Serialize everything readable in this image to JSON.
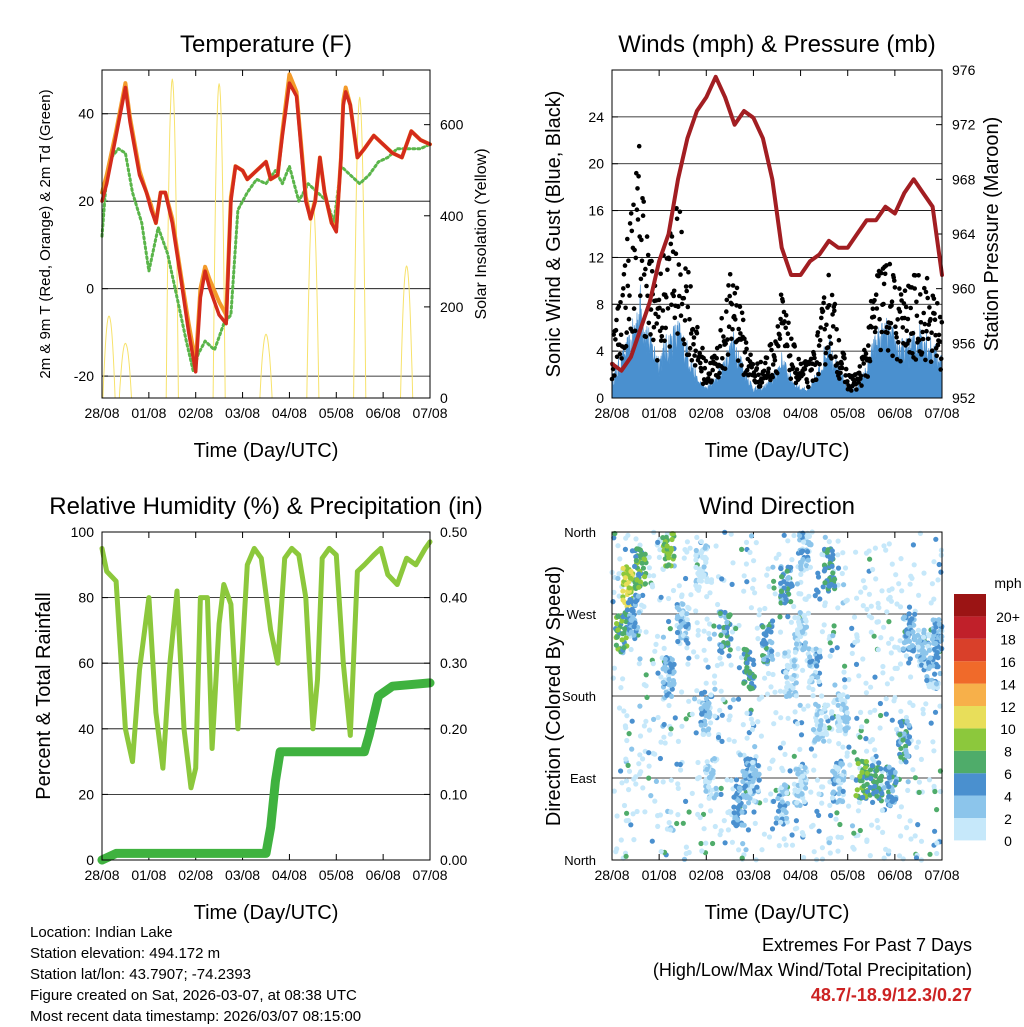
{
  "xticks": [
    "28/08",
    "01/08",
    "02/08",
    "03/08",
    "04/08",
    "05/08",
    "06/08",
    "07/08"
  ],
  "info": {
    "location": "Location: Indian Lake",
    "elevation": "Station elevation: 494.172 m",
    "latlon": "Station lat/lon: 43.7907; -74.2393",
    "created": "Figure created on Sat, 2026-03-07, at 08:38 UTC",
    "latest": "Most recent data timestamp: 2026/03/07 08:15:00"
  },
  "extremes": {
    "title": "Extremes For Past 7 Days",
    "subtitle": "(High/Low/Max Wind/Total Precipitation)",
    "values": "48.7/-18.9/12.3/0.27"
  },
  "chart_data": [
    {
      "id": "temp",
      "type": "line",
      "title": "Temperature (F)",
      "xlabel": "Time (Day/UTC)",
      "ylabel": "2m & 9m T (Red, Orange) & 2m Td (Green)",
      "ylabel_right": "Solar Insolation (Yellow)",
      "ylim": [
        -25,
        50
      ],
      "yticks": [
        "-20",
        "0",
        "20",
        "40"
      ],
      "ylim_right": [
        0,
        720
      ],
      "yticks_right": [
        "0",
        "200",
        "400",
        "600"
      ],
      "colors": {
        "t2m": "#d42b1c",
        "t9m": "#f39a2a",
        "td2m": "#5ab54a",
        "solar": "#f7e26b"
      },
      "series": [
        {
          "name": "2m T",
          "x": [
            0,
            0.1,
            0.3,
            0.5,
            0.6,
            0.8,
            0.95,
            1.05,
            1.15,
            1.25,
            1.35,
            1.5,
            1.7,
            1.85,
            2.0,
            2.1,
            2.2,
            2.3,
            2.5,
            2.65,
            2.75,
            2.85,
            3.0,
            3.1,
            3.3,
            3.5,
            3.6,
            3.75,
            3.85,
            4.0,
            4.15,
            4.35,
            4.45,
            4.55,
            4.65,
            4.75,
            4.9,
            5.0,
            5.1,
            5.15,
            5.2,
            5.3,
            5.45,
            5.6,
            5.8,
            6.0,
            6.2,
            6.4,
            6.6,
            6.8,
            7.0
          ],
          "y": [
            20,
            24,
            35,
            46,
            38,
            26,
            22,
            18,
            15,
            22,
            22,
            15,
            1,
            -10,
            -19,
            -2,
            4,
            0,
            -6,
            -8,
            20,
            28,
            27,
            25,
            27,
            29,
            25,
            26,
            35,
            47,
            44,
            20,
            16,
            20,
            30,
            22,
            15,
            13,
            30,
            42,
            45,
            42,
            30,
            32,
            35,
            33,
            31,
            30,
            36,
            34,
            33
          ]
        },
        {
          "name": "9m T",
          "x": [
            0,
            0.1,
            0.3,
            0.5,
            0.6,
            0.8,
            0.95,
            1.05,
            1.15,
            1.25,
            1.35,
            1.5,
            1.7,
            1.85,
            2.0,
            2.1,
            2.2,
            2.3,
            2.5,
            2.65,
            2.75,
            2.85,
            3.0,
            3.1,
            3.3,
            3.5,
            3.6,
            3.75,
            3.85,
            4.0,
            4.15,
            4.35,
            4.45,
            4.55,
            4.65,
            4.75,
            4.9,
            5.0,
            5.1,
            5.15,
            5.2,
            5.3,
            5.45,
            5.6,
            5.8,
            6.0,
            6.2,
            6.4,
            6.6,
            6.8,
            7.0
          ],
          "y": [
            22,
            26,
            36,
            47,
            39,
            27,
            22,
            19,
            15,
            22,
            22,
            16,
            2,
            -8,
            -17,
            0,
            5,
            2,
            -3,
            -6,
            21,
            28,
            27,
            25,
            27,
            29,
            25,
            26,
            36,
            49,
            45,
            21,
            16,
            20,
            30,
            22,
            15,
            14,
            30,
            43,
            46,
            42,
            30,
            32,
            35,
            33,
            31,
            30,
            36,
            34,
            33
          ]
        },
        {
          "name": "2m Td",
          "x": [
            0,
            0.1,
            0.2,
            0.35,
            0.5,
            0.65,
            0.85,
            1.0,
            1.2,
            1.4,
            1.6,
            1.8,
            1.95,
            2.05,
            2.2,
            2.4,
            2.6,
            2.75,
            2.9,
            3.1,
            3.3,
            3.5,
            3.7,
            3.85,
            4.0,
            4.2,
            4.4,
            4.6,
            4.8,
            4.95,
            5.1,
            5.3,
            5.5,
            5.7,
            5.9,
            6.1,
            6.3,
            6.5,
            6.8,
            7.0
          ],
          "y": [
            12,
            26,
            30,
            32,
            31,
            22,
            15,
            4,
            14,
            8,
            -2,
            -12,
            -19,
            -15,
            -12,
            -14,
            -8,
            -6,
            18,
            22,
            25,
            24,
            27,
            24,
            28,
            20,
            24,
            22,
            20,
            15,
            28,
            26,
            24,
            26,
            29,
            30,
            32,
            32,
            32,
            33
          ]
        },
        {
          "name": "Solar",
          "axis": "right",
          "peaks": [
            0.15,
            0.5,
            1.5,
            2.5,
            3.5,
            4.5,
            5.5,
            6.5
          ],
          "amplitude": [
            180,
            120,
            700,
            690,
            140,
            430,
            660,
            290
          ]
        }
      ]
    },
    {
      "id": "wind",
      "type": "scatter",
      "title": "Winds (mph) & Pressure (mb)",
      "xlabel": "Time (Day/UTC)",
      "ylabel": "Sonic Wind & Gust (Blue, Black)",
      "ylabel_right": "Station Pressure (Maroon)",
      "ylim": [
        0,
        28
      ],
      "yticks": [
        "0",
        "4",
        "8",
        "12",
        "16",
        "20",
        "24"
      ],
      "ylim_right": [
        952,
        976
      ],
      "yticks_right": [
        "952",
        "956",
        "960",
        "964",
        "968",
        "972",
        "976"
      ],
      "colors": {
        "wind": "#4a90cf",
        "gust": "#000000",
        "pressure": "#a21e22"
      },
      "series": [
        {
          "name": "Gust envelope",
          "x": [
            0,
            0.2,
            0.4,
            0.6,
            0.8,
            1.0,
            1.2,
            1.4,
            1.6,
            1.8,
            2.0,
            2.2,
            2.4,
            2.6,
            2.8,
            3.0,
            3.2,
            3.4,
            3.6,
            3.8,
            4.0,
            4.2,
            4.4,
            4.6,
            4.8,
            5.0,
            5.2,
            5.4,
            5.6,
            5.8,
            6.0,
            6.2,
            6.4,
            6.6,
            6.8,
            7.0
          ],
          "y": [
            5,
            10,
            16,
            22,
            12,
            10,
            14,
            16,
            12,
            6,
            3,
            4,
            8,
            12,
            6,
            3,
            3,
            5,
            9,
            5,
            3,
            3,
            6,
            11,
            6,
            2,
            2,
            5,
            11,
            12,
            10,
            9,
            10,
            11,
            9,
            7
          ]
        },
        {
          "name": "Wind envelope",
          "x": [
            0,
            0.2,
            0.4,
            0.6,
            0.8,
            1.0,
            1.2,
            1.4,
            1.6,
            1.8,
            2.0,
            2.2,
            2.4,
            2.6,
            2.8,
            3.0,
            3.2,
            3.4,
            3.6,
            3.8,
            4.0,
            4.2,
            4.4,
            4.6,
            4.8,
            5.0,
            5.2,
            5.4,
            5.6,
            5.8,
            6.0,
            6.2,
            6.4,
            6.6,
            6.8,
            7.0
          ],
          "y": [
            2,
            4,
            6,
            10,
            6,
            4,
            6,
            7,
            5,
            2,
            1,
            2,
            4,
            6,
            3,
            1,
            1,
            2,
            4,
            2,
            1,
            1,
            3,
            6,
            3,
            1,
            1,
            3,
            6,
            7,
            6,
            5,
            6,
            7,
            5,
            4
          ]
        },
        {
          "name": "Pressure",
          "axis": "right",
          "x": [
            0,
            0.2,
            0.4,
            0.6,
            0.8,
            1.0,
            1.2,
            1.4,
            1.6,
            1.8,
            2.0,
            2.2,
            2.4,
            2.6,
            2.8,
            3.0,
            3.2,
            3.4,
            3.6,
            3.8,
            4.0,
            4.2,
            4.4,
            4.6,
            4.8,
            5.0,
            5.2,
            5.4,
            5.6,
            5.8,
            6.0,
            6.2,
            6.4,
            6.6,
            6.8,
            7.0
          ],
          "y": [
            954.5,
            954,
            955,
            957,
            959,
            962,
            964,
            968,
            971,
            973,
            974,
            975.5,
            974,
            972,
            973,
            972.5,
            971,
            968,
            963,
            961,
            961,
            962,
            962.5,
            963.5,
            963,
            963,
            964,
            965,
            965,
            966,
            965.5,
            967,
            968,
            967,
            966,
            961
          ]
        }
      ]
    },
    {
      "id": "rh",
      "type": "line",
      "title": "Relative Humidity (%) & Precipitation (in)",
      "xlabel": "Time (Day/UTC)",
      "ylabel": "Percent & Total Rainfall",
      "ylim": [
        0,
        100
      ],
      "yticks": [
        "0",
        "20",
        "40",
        "60",
        "80",
        "100"
      ],
      "ylim_right": [
        0,
        0.5
      ],
      "yticks_right": [
        "0.00",
        "0.10",
        "0.20",
        "0.30",
        "0.40",
        "0.50"
      ],
      "colors": {
        "rh": "#8cc83c",
        "precip": "#3fb23f"
      },
      "series": [
        {
          "name": "RH",
          "x": [
            0,
            0.1,
            0.3,
            0.5,
            0.65,
            0.8,
            1.0,
            1.15,
            1.3,
            1.45,
            1.6,
            1.75,
            1.9,
            2.0,
            2.1,
            2.25,
            2.35,
            2.5,
            2.6,
            2.75,
            2.9,
            3.1,
            3.25,
            3.4,
            3.6,
            3.75,
            3.9,
            4.05,
            4.2,
            4.35,
            4.5,
            4.6,
            4.7,
            4.85,
            5.0,
            5.15,
            5.3,
            5.45,
            5.6,
            5.8,
            5.95,
            6.1,
            6.3,
            6.5,
            6.7,
            6.9,
            7.0
          ],
          "y": [
            95,
            88,
            85,
            40,
            30,
            58,
            80,
            45,
            28,
            60,
            82,
            40,
            22,
            28,
            80,
            80,
            34,
            72,
            84,
            78,
            40,
            90,
            95,
            92,
            70,
            60,
            92,
            95,
            93,
            80,
            40,
            55,
            92,
            95,
            93,
            60,
            38,
            88,
            90,
            93,
            95,
            87,
            84,
            92,
            90,
            95,
            97
          ]
        },
        {
          "name": "Precip",
          "axis": "right",
          "x": [
            0,
            0.3,
            3.5,
            3.6,
            3.7,
            3.8,
            5.6,
            5.7,
            5.8,
            5.9,
            6.2,
            7.0
          ],
          "y": [
            0,
            0.01,
            0.01,
            0.05,
            0.12,
            0.165,
            0.165,
            0.19,
            0.22,
            0.25,
            0.265,
            0.27
          ]
        }
      ]
    },
    {
      "id": "wdir",
      "type": "scatter",
      "title": "Wind Direction",
      "xlabel": "Time (Day/UTC)",
      "ylabel": "Direction (Colored By Speed)",
      "ylim": [
        0,
        360
      ],
      "yticks": [
        "North",
        "East",
        "South",
        "West",
        "North"
      ],
      "colorbar": {
        "unit": "mph",
        "labels": [
          "0",
          "2",
          "4",
          "6",
          "8",
          "10",
          "12",
          "14",
          "16",
          "18",
          "20+"
        ],
        "colors": [
          "#c6e8fa",
          "#8cc5eb",
          "#4a90cf",
          "#4fac6a",
          "#8cc83c",
          "#e8de5a",
          "#f7b04a",
          "#f06a2a",
          "#d9402a",
          "#c0202a",
          "#9b1414"
        ]
      },
      "series": [
        {
          "name": "clusters",
          "center_dir": [
            250,
            300,
            320,
            270,
            345,
            200,
            260,
            320,
            160,
            90,
            250,
            90,
            60,
            210,
            85,
            240,
            60,
            300,
            200,
            250,
            80,
            340,
            210,
            150,
            320,
            85,
            160,
            88,
            85,
            80,
            130,
            250,
            230,
            210,
            250
          ],
          "center_day": [
            0.2,
            0.35,
            0.6,
            0.45,
            1.2,
            1.2,
            1.5,
            1.9,
            2.0,
            2.1,
            2.4,
            2.9,
            2.7,
            2.9,
            3.0,
            3.3,
            3.6,
            3.7,
            3.8,
            4.0,
            4.0,
            4.1,
            4.3,
            4.4,
            4.6,
            4.8,
            4.9,
            5.3,
            5.6,
            5.9,
            6.2,
            6.3,
            6.6,
            6.8,
            6.9
          ],
          "speed": [
            6,
            9,
            6,
            3,
            7,
            3,
            2,
            0,
            2,
            1,
            4,
            3,
            3,
            5,
            2,
            4,
            2,
            4,
            1,
            1,
            1,
            2,
            2,
            1,
            5,
            2,
            1,
            6,
            5,
            4,
            4,
            3,
            2,
            2,
            3
          ]
        }
      ]
    }
  ]
}
